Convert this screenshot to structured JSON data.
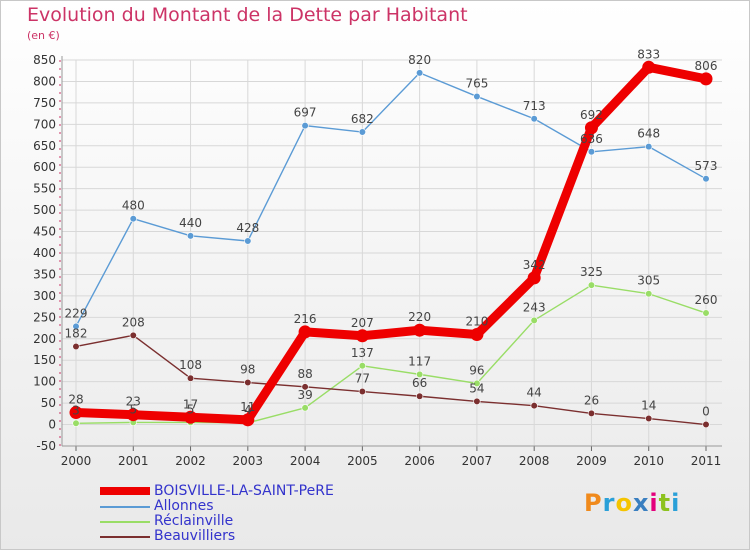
{
  "title": "Evolution du Montant de la Dette par Habitant",
  "unit": "(en €)",
  "logo": {
    "text": "Proxiti",
    "colors": [
      "#f08a1c",
      "#2aa0d8",
      "#f5c400",
      "#3a7fc0",
      "#e4007c",
      "#8dc21f",
      "#2aa0d8"
    ]
  },
  "chart_data": {
    "type": "line",
    "title": "Evolution du Montant de la Dette par Habitant",
    "ylabel": "(en €)",
    "xlabel": "",
    "categories": [
      "2000",
      "2001",
      "2002",
      "2003",
      "2004",
      "2005",
      "2006",
      "2007",
      "2008",
      "2009",
      "2010",
      "2011"
    ],
    "ylim": [
      -50,
      850
    ],
    "yticks": [
      -50,
      0,
      50,
      100,
      150,
      200,
      250,
      300,
      350,
      400,
      450,
      500,
      550,
      600,
      650,
      700,
      750,
      800,
      850
    ],
    "grid": true,
    "legend": "bottom-left",
    "series": [
      {
        "name": "BOISVILLE-LA-SAINT-PeRE",
        "color": "#ee0000",
        "values": [
          28,
          23,
          17,
          11,
          216,
          207,
          220,
          210,
          342,
          692,
          833,
          806
        ]
      },
      {
        "name": "Allonnes",
        "color": "#5b9bd5",
        "values": [
          229,
          480,
          440,
          428,
          697,
          682,
          820,
          765,
          713,
          636,
          648,
          573
        ]
      },
      {
        "name": "Réclainville",
        "color": "#99dd66",
        "values": [
          3,
          5,
          5,
          4,
          39,
          137,
          117,
          96,
          243,
          325,
          305,
          260
        ]
      },
      {
        "name": "Beauvilliers",
        "color": "#7b2f2f",
        "values": [
          182,
          208,
          108,
          98,
          88,
          77,
          66,
          54,
          44,
          26,
          14,
          0
        ]
      }
    ]
  }
}
